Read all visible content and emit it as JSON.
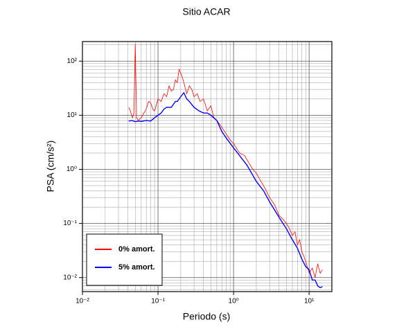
{
  "chart_data": {
    "type": "line",
    "title": "Sitio ACAR",
    "x_label": "Periodo (s)",
    "y_label": "PSA (cm/s²)",
    "xlog": true,
    "ylog": true,
    "grid": true,
    "legend": "lower left",
    "xlim": [
      0.01,
      20
    ],
    "ylim": [
      0.0055,
      230
    ],
    "xticks": [
      {
        "value": 0.01,
        "label": "10⁻²"
      },
      {
        "value": 0.1,
        "label": "10⁻¹"
      },
      {
        "value": 1,
        "label": "10⁰"
      },
      {
        "value": 10,
        "label": "10¹"
      }
    ],
    "yticks": [
      {
        "value": 0.01,
        "label": "10⁻²"
      },
      {
        "value": 0.1,
        "label": "10⁻¹"
      },
      {
        "value": 1,
        "label": "10⁰"
      },
      {
        "value": 10,
        "label": "10¹"
      },
      {
        "value": 100,
        "label": "10²"
      }
    ],
    "xminorticks": [
      0.02,
      0.03,
      0.04,
      0.05,
      0.06,
      0.07,
      0.08,
      0.09,
      0.2,
      0.3,
      0.4,
      0.5,
      0.6,
      0.7,
      0.8,
      0.9,
      2,
      3,
      4,
      5,
      6,
      7,
      8,
      9
    ],
    "yminorticks": [
      0.006,
      0.007,
      0.008,
      0.009,
      0.02,
      0.03,
      0.04,
      0.05,
      0.06,
      0.07,
      0.08,
      0.09,
      0.2,
      0.3,
      0.4,
      0.5,
      0.6,
      0.7,
      0.8,
      0.9,
      2,
      3,
      4,
      5,
      6,
      7,
      8,
      9,
      20,
      30,
      40,
      50,
      60,
      70,
      80,
      90,
      200
    ],
    "series": [
      {
        "name": "0% amort.",
        "color": "#ff0000",
        "x": [
          0.041,
          0.043,
          0.046,
          0.048,
          0.05,
          0.052,
          0.055,
          0.06,
          0.065,
          0.07,
          0.075,
          0.08,
          0.085,
          0.09,
          0.1,
          0.11,
          0.12,
          0.13,
          0.14,
          0.15,
          0.16,
          0.17,
          0.18,
          0.19,
          0.2,
          0.21,
          0.22,
          0.24,
          0.26,
          0.28,
          0.3,
          0.33,
          0.36,
          0.4,
          0.45,
          0.5,
          0.55,
          0.6,
          0.7,
          0.8,
          0.9,
          1,
          1.2,
          1.4,
          1.6,
          1.8,
          2,
          2.3,
          2.6,
          3,
          3.5,
          4,
          4.5,
          5,
          5.5,
          6,
          6.5,
          7,
          7.5,
          8,
          8.5,
          9,
          10,
          11,
          12,
          13,
          14,
          15
        ],
        "values": [
          14,
          12,
          9,
          11,
          210,
          9,
          8,
          9,
          11,
          13,
          18,
          17,
          13,
          12,
          20,
          18,
          25,
          22,
          35,
          28,
          30,
          45,
          40,
          70,
          60,
          50,
          40,
          25,
          35,
          30,
          22,
          25,
          18,
          20,
          12,
          15,
          9,
          8,
          6,
          4.5,
          3.5,
          3,
          2,
          1.8,
          1.3,
          1,
          0.85,
          0.6,
          0.45,
          0.3,
          0.22,
          0.14,
          0.12,
          0.1,
          0.08,
          0.06,
          0.07,
          0.04,
          0.05,
          0.03,
          0.025,
          0.02,
          0.012,
          0.015,
          0.01,
          0.018,
          0.012,
          0.014
        ]
      },
      {
        "name": "5% amort.",
        "color": "#0000ff",
        "x": [
          0.041,
          0.045,
          0.05,
          0.055,
          0.06,
          0.07,
          0.08,
          0.09,
          0.1,
          0.11,
          0.12,
          0.13,
          0.15,
          0.17,
          0.18,
          0.2,
          0.22,
          0.24,
          0.26,
          0.3,
          0.35,
          0.4,
          0.45,
          0.5,
          0.6,
          0.7,
          0.8,
          1,
          1.2,
          1.5,
          2,
          2.5,
          3,
          4,
          5,
          6,
          7,
          8,
          9,
          10,
          11,
          12,
          13,
          14,
          15
        ],
        "values": [
          7.8,
          8,
          7.6,
          7.8,
          7.7,
          8,
          7.8,
          9,
          10,
          11,
          13,
          14,
          14,
          18,
          18,
          22,
          26,
          20,
          18,
          14,
          12,
          11,
          11,
          10,
          8,
          5,
          3.8,
          2.5,
          1.8,
          1.2,
          0.6,
          0.4,
          0.25,
          0.13,
          0.08,
          0.05,
          0.035,
          0.022,
          0.016,
          0.014,
          0.009,
          0.009,
          0.007,
          0.0065,
          0.0068
        ]
      }
    ]
  }
}
